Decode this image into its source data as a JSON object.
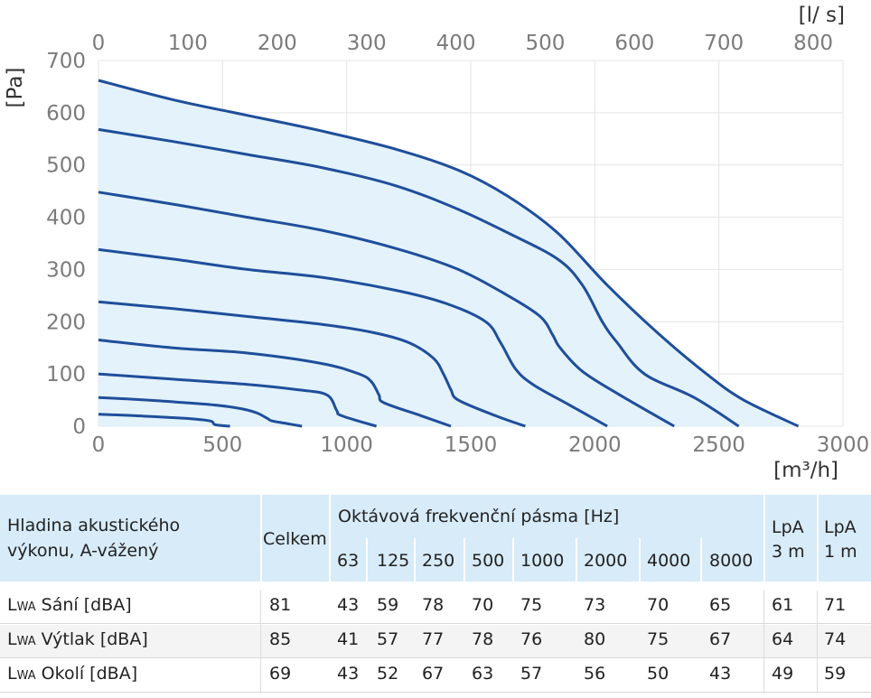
{
  "chart_data": {
    "type": "line",
    "x_unit": "[m³/h]",
    "x2_unit": "[l/ s]",
    "y_unit": "[Pa]",
    "xlim": [
      0,
      3000
    ],
    "x2lim": [
      0,
      833.3
    ],
    "ylim": [
      0,
      700
    ],
    "x_ticks": [
      "0",
      "500",
      "1000",
      "1500",
      "2000",
      "2500",
      "3000"
    ],
    "x2_ticks": [
      "0",
      "100",
      "200",
      "300",
      "400",
      "500",
      "600",
      "700",
      "800"
    ],
    "y_ticks": [
      "0",
      "100",
      "200",
      "300",
      "400",
      "500",
      "600",
      "700"
    ],
    "grid": true,
    "series": [
      {
        "points": [
          [
            0,
            23
          ],
          [
            150,
            20
          ],
          [
            350,
            15
          ],
          [
            450,
            10
          ],
          [
            470,
            3
          ],
          [
            530,
            0
          ]
        ]
      },
      {
        "points": [
          [
            0,
            55
          ],
          [
            200,
            50
          ],
          [
            350,
            45
          ],
          [
            480,
            40
          ],
          [
            580,
            33
          ],
          [
            640,
            25
          ],
          [
            680,
            15
          ],
          [
            700,
            10
          ],
          [
            760,
            5
          ],
          [
            820,
            0
          ]
        ]
      },
      {
        "points": [
          [
            0,
            100
          ],
          [
            300,
            90
          ],
          [
            600,
            80
          ],
          [
            800,
            70
          ],
          [
            920,
            60
          ],
          [
            960,
            30
          ],
          [
            980,
            20
          ],
          [
            1120,
            0
          ]
        ]
      },
      {
        "points": [
          [
            0,
            165
          ],
          [
            300,
            150
          ],
          [
            600,
            140
          ],
          [
            900,
            120
          ],
          [
            1050,
            100
          ],
          [
            1100,
            85
          ],
          [
            1130,
            60
          ],
          [
            1150,
            45
          ],
          [
            1300,
            20
          ],
          [
            1420,
            0
          ]
        ]
      },
      {
        "points": [
          [
            0,
            238
          ],
          [
            300,
            225
          ],
          [
            600,
            210
          ],
          [
            900,
            195
          ],
          [
            1100,
            180
          ],
          [
            1250,
            160
          ],
          [
            1350,
            130
          ],
          [
            1390,
            100
          ],
          [
            1420,
            70
          ],
          [
            1450,
            50
          ],
          [
            1600,
            20
          ],
          [
            1720,
            0
          ]
        ]
      },
      {
        "points": [
          [
            0,
            338
          ],
          [
            300,
            320
          ],
          [
            600,
            300
          ],
          [
            900,
            285
          ],
          [
            1200,
            260
          ],
          [
            1400,
            235
          ],
          [
            1560,
            200
          ],
          [
            1620,
            160
          ],
          [
            1680,
            110
          ],
          [
            1750,
            80
          ],
          [
            1900,
            40
          ],
          [
            2050,
            0
          ]
        ]
      },
      {
        "points": [
          [
            0,
            448
          ],
          [
            300,
            425
          ],
          [
            600,
            400
          ],
          [
            900,
            375
          ],
          [
            1200,
            340
          ],
          [
            1450,
            300
          ],
          [
            1650,
            250
          ],
          [
            1780,
            210
          ],
          [
            1830,
            175
          ],
          [
            1860,
            150
          ],
          [
            1950,
            105
          ],
          [
            2100,
            60
          ],
          [
            2320,
            0
          ]
        ]
      },
      {
        "points": [
          [
            0,
            568
          ],
          [
            300,
            545
          ],
          [
            600,
            520
          ],
          [
            900,
            495
          ],
          [
            1200,
            460
          ],
          [
            1450,
            415
          ],
          [
            1650,
            370
          ],
          [
            1850,
            320
          ],
          [
            1950,
            270
          ],
          [
            2030,
            200
          ],
          [
            2090,
            160
          ],
          [
            2200,
            100
          ],
          [
            2400,
            55
          ],
          [
            2580,
            0
          ]
        ]
      },
      {
        "points": [
          [
            0,
            662
          ],
          [
            300,
            625
          ],
          [
            600,
            595
          ],
          [
            900,
            565
          ],
          [
            1200,
            530
          ],
          [
            1450,
            490
          ],
          [
            1650,
            440
          ],
          [
            1850,
            370
          ],
          [
            2050,
            270
          ],
          [
            2250,
            180
          ],
          [
            2450,
            100
          ],
          [
            2600,
            50
          ],
          [
            2820,
            0
          ]
        ]
      }
    ]
  },
  "table": {
    "headers": {
      "label_line1": "Hladina akustického",
      "label_line2": "výkonu, A-vážený",
      "total": "Celkem",
      "bands_title": "Oktávová frekvenční pásma [Hz]",
      "bands": [
        "63",
        "125",
        "250",
        "500",
        "1000",
        "2000",
        "4000",
        "8000"
      ],
      "lpa3_line1": "LpA",
      "lpa3_line2": "3 m",
      "lpa1_line1": "LpA",
      "lpa1_line2": "1 m"
    },
    "rows": [
      {
        "prefix": "L",
        "sub": "WA",
        "label": " Sání [dBA]",
        "total": "81",
        "bands": [
          "43",
          "59",
          "78",
          "70",
          "75",
          "73",
          "70",
          "65"
        ],
        "lpa3": "61",
        "lpa1": "71"
      },
      {
        "prefix": "L",
        "sub": "WA",
        "label": " Výtlak [dBA]",
        "total": "85",
        "bands": [
          "41",
          "57",
          "77",
          "78",
          "76",
          "80",
          "75",
          "67"
        ],
        "lpa3": "64",
        "lpa1": "74"
      },
      {
        "prefix": "L",
        "sub": "WA",
        "label": " Okolí [dBA]",
        "total": "69",
        "bands": [
          "43",
          "52",
          "67",
          "63",
          "57",
          "56",
          "50",
          "43"
        ],
        "lpa3": "49",
        "lpa1": "59"
      }
    ]
  },
  "colors": {
    "curve": "#1f4e9a",
    "envelope_fill": "#e3f2fb",
    "table_header": "#d7ebf8",
    "row_alt": "#f4f4f4"
  }
}
